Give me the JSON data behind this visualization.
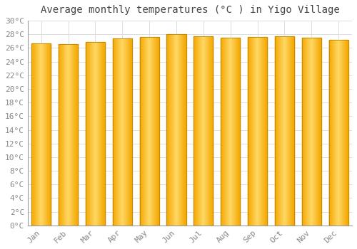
{
  "title": "Average monthly temperatures (°C ) in Yigo Village",
  "months": [
    "Jan",
    "Feb",
    "Mar",
    "Apr",
    "May",
    "Jun",
    "Jul",
    "Aug",
    "Sep",
    "Oct",
    "Nov",
    "Dec"
  ],
  "values": [
    26.7,
    26.6,
    26.9,
    27.4,
    27.6,
    28.0,
    27.7,
    27.5,
    27.6,
    27.7,
    27.5,
    27.2
  ],
  "bar_color_center": "#FFD966",
  "bar_color_edge": "#F5A800",
  "bar_edge_color": "#B8860B",
  "ylim": [
    0,
    30
  ],
  "ytick_step": 2,
  "background_color": "#FFFFFF",
  "plot_bg_color": "#FFFFFF",
  "grid_color": "#DDDDDD",
  "title_fontsize": 10,
  "tick_fontsize": 8,
  "title_color": "#444444",
  "tick_color": "#888888"
}
